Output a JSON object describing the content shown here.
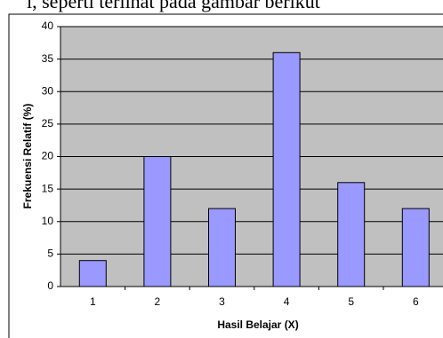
{
  "context_text": "i, seperti terlihat pada gambar berikut",
  "chart_data": {
    "type": "bar",
    "x_label": "Hasil Belajar (X)",
    "y_label": "Frekuensi Relatif (%)",
    "categories": [
      "1",
      "2",
      "3",
      "4",
      "5",
      "6"
    ],
    "values": [
      4,
      20,
      12,
      36,
      16,
      12
    ],
    "color": "#9999ff",
    "ylim": [
      0,
      40
    ],
    "yticks": [
      0,
      5,
      10,
      15,
      20,
      25,
      30,
      35,
      40
    ],
    "grid": true
  }
}
